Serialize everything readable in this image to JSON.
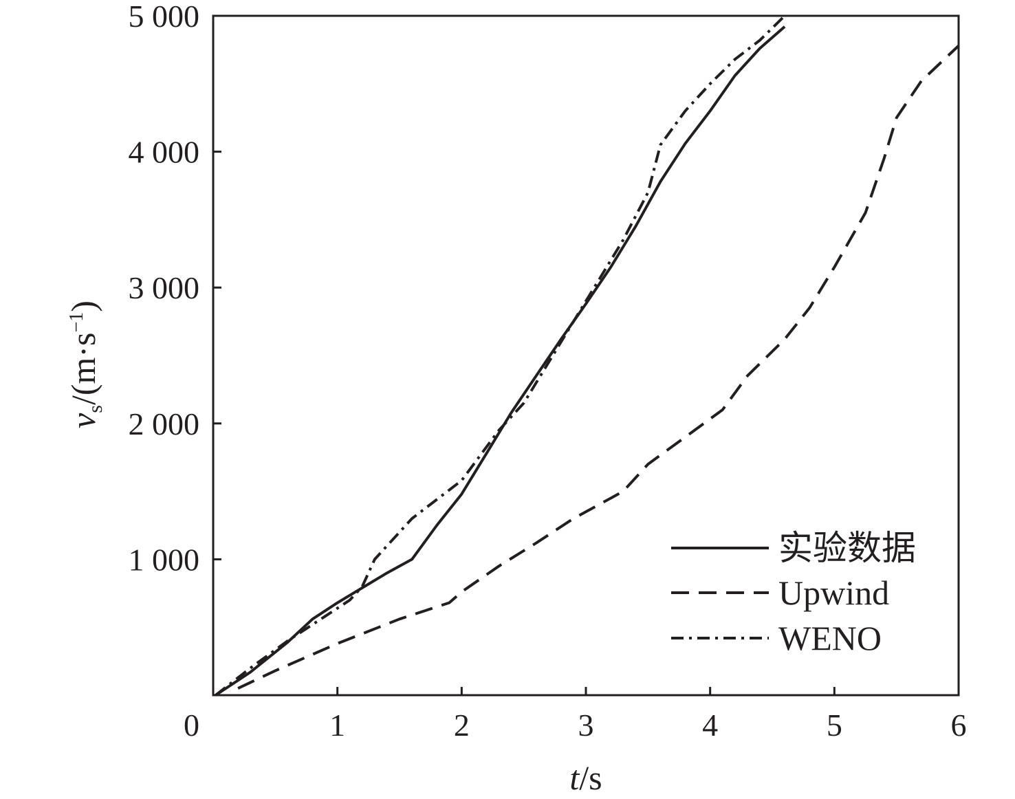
{
  "chart_data": {
    "type": "line",
    "xlabel": {
      "italic": "t",
      "rest": "/s"
    },
    "ylabel": {
      "var": "v",
      "sub": "s",
      "open": "/(m·s",
      "sup": "−1",
      "close": ")"
    },
    "xlim": [
      0,
      6
    ],
    "ylim": [
      0,
      5000
    ],
    "xticks": [
      0,
      1,
      2,
      3,
      4,
      5,
      6
    ],
    "xtick_labels": [
      "0",
      "1",
      "2",
      "3",
      "4",
      "5",
      "6"
    ],
    "yticks": [
      1000,
      2000,
      3000,
      4000,
      5000
    ],
    "ytick_labels": [
      "1 000",
      "2 000",
      "3 000",
      "4 000",
      "5 000"
    ],
    "grid": false,
    "legend_position": "bottom-right",
    "series": [
      {
        "name": "实验数据",
        "style": "solid",
        "color": "#231f20",
        "points": [
          [
            0.02,
            0
          ],
          [
            0.3,
            170
          ],
          [
            0.6,
            390
          ],
          [
            0.8,
            560
          ],
          [
            1.0,
            680
          ],
          [
            1.2,
            790
          ],
          [
            1.4,
            900
          ],
          [
            1.6,
            1000
          ],
          [
            1.8,
            1250
          ],
          [
            2.0,
            1480
          ],
          [
            2.2,
            1780
          ],
          [
            2.4,
            2080
          ],
          [
            2.6,
            2350
          ],
          [
            2.8,
            2620
          ],
          [
            3.0,
            2880
          ],
          [
            3.2,
            3150
          ],
          [
            3.4,
            3450
          ],
          [
            3.6,
            3780
          ],
          [
            3.8,
            4060
          ],
          [
            4.0,
            4300
          ],
          [
            4.2,
            4560
          ],
          [
            4.4,
            4760
          ],
          [
            4.6,
            4920
          ]
        ]
      },
      {
        "name": "Upwind",
        "style": "dashed",
        "color": "#231f20",
        "points": [
          [
            0.2,
            50
          ],
          [
            0.5,
            180
          ],
          [
            1.0,
            380
          ],
          [
            1.5,
            560
          ],
          [
            1.9,
            680
          ],
          [
            2.0,
            760
          ],
          [
            2.3,
            950
          ],
          [
            2.6,
            1120
          ],
          [
            2.9,
            1300
          ],
          [
            3.1,
            1400
          ],
          [
            3.3,
            1500
          ],
          [
            3.5,
            1700
          ],
          [
            3.8,
            1900
          ],
          [
            4.1,
            2100
          ],
          [
            4.3,
            2350
          ],
          [
            4.6,
            2620
          ],
          [
            4.8,
            2850
          ],
          [
            5.0,
            3150
          ],
          [
            5.25,
            3550
          ],
          [
            5.4,
            3950
          ],
          [
            5.5,
            4250
          ],
          [
            5.7,
            4520
          ],
          [
            6.0,
            4780
          ]
        ]
      },
      {
        "name": "WENO",
        "style": "dashdot",
        "color": "#231f20",
        "points": [
          [
            0.02,
            0
          ],
          [
            0.3,
            200
          ],
          [
            0.6,
            400
          ],
          [
            0.9,
            580
          ],
          [
            1.1,
            700
          ],
          [
            1.2,
            800
          ],
          [
            1.3,
            1000
          ],
          [
            1.6,
            1300
          ],
          [
            2.0,
            1580
          ],
          [
            2.3,
            1950
          ],
          [
            2.5,
            2150
          ],
          [
            2.8,
            2600
          ],
          [
            3.1,
            3050
          ],
          [
            3.3,
            3350
          ],
          [
            3.5,
            3700
          ],
          [
            3.6,
            4050
          ],
          [
            3.8,
            4300
          ],
          [
            4.0,
            4500
          ],
          [
            4.2,
            4680
          ],
          [
            4.4,
            4820
          ],
          [
            4.6,
            5000
          ]
        ]
      }
    ]
  }
}
